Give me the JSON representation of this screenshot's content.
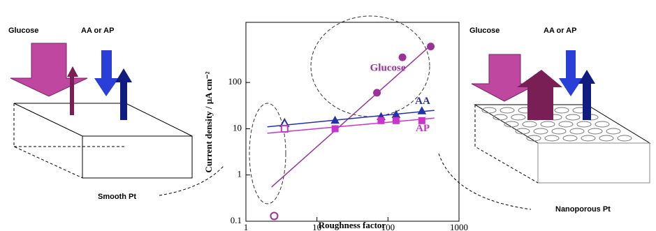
{
  "chart_data": {
    "type": "scatter",
    "xlabel": "Roughness factor",
    "ylabel": "Current density /   µA cm⁻²",
    "xlim": [
      1,
      1000
    ],
    "ylim": [
      0.1,
      2000
    ],
    "xscale": "log",
    "yscale": "log",
    "xticks": [
      1,
      10,
      100,
      1000
    ],
    "yticks": [
      0.1,
      1,
      10,
      100
    ],
    "series": [
      {
        "name": "Glucose",
        "color": "#993399",
        "marker": "circle",
        "x": [
          2.5,
          70,
          160,
          400
        ],
        "values": [
          0.13,
          60,
          350,
          600
        ],
        "open": [
          true,
          false,
          false,
          false
        ],
        "fit": {
          "x": [
            2.3,
            430
          ],
          "y": [
            0.55,
            700
          ]
        }
      },
      {
        "name": "AA",
        "color": "#2233aa",
        "marker": "triangle",
        "x": [
          3.5,
          18,
          80,
          130,
          300
        ],
        "values": [
          13,
          15,
          18,
          20,
          24
        ],
        "open": [
          true,
          false,
          false,
          false,
          false
        ],
        "fit": {
          "x": [
            2,
            450
          ],
          "y": [
            11,
            25
          ]
        }
      },
      {
        "name": "AP",
        "color": "#cc33cc",
        "marker": "square",
        "x": [
          3.5,
          18,
          80,
          130,
          300
        ],
        "values": [
          10,
          10,
          15,
          15,
          15
        ],
        "open": [
          true,
          false,
          false,
          false,
          false
        ],
        "fit": {
          "x": [
            2,
            450
          ],
          "y": [
            8,
            17
          ]
        }
      }
    ]
  },
  "left_panel": {
    "substrate_label": "Glucose",
    "interferent_label": "AA or AP",
    "electrode_label": "Smooth Pt"
  },
  "right_panel": {
    "substrate_label": "Glucose",
    "interferent_label": "AA or AP",
    "electrode_label": "Nanoporous Pt"
  }
}
